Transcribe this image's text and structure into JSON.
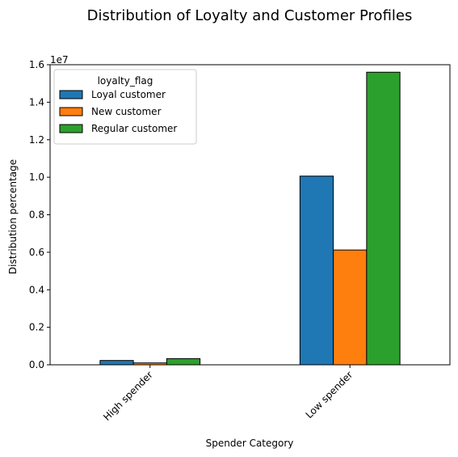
{
  "chart_data": {
    "type": "bar",
    "title": "Distribution of Loyalty and Customer Profiles",
    "xlabel": "Spender Category",
    "ylabel": "Distribution percentage",
    "y_offset_label": "1e7",
    "y_scale": 10000000,
    "categories": [
      "High spender",
      "Low spender"
    ],
    "series": [
      {
        "name": "Loyal customer",
        "color": "#1f77b4",
        "values": [
          230000,
          10060000
        ]
      },
      {
        "name": "New customer",
        "color": "#ff7f0e",
        "values": [
          100000,
          6120000
        ]
      },
      {
        "name": "Regular customer",
        "color": "#2ca02c",
        "values": [
          330000,
          15600000
        ]
      }
    ],
    "ylim": [
      0,
      16000000
    ],
    "yticks": [
      0,
      2000000,
      4000000,
      6000000,
      8000000,
      10000000,
      12000000,
      14000000,
      16000000
    ],
    "ytick_labels": [
      "0.0",
      "0.2",
      "0.4",
      "0.6",
      "0.8",
      "1.0",
      "1.2",
      "1.4",
      "1.6"
    ],
    "grid": false,
    "legend": {
      "title": "loyalty_flag",
      "placement": "top-left"
    },
    "xtick_rotation": 45
  }
}
